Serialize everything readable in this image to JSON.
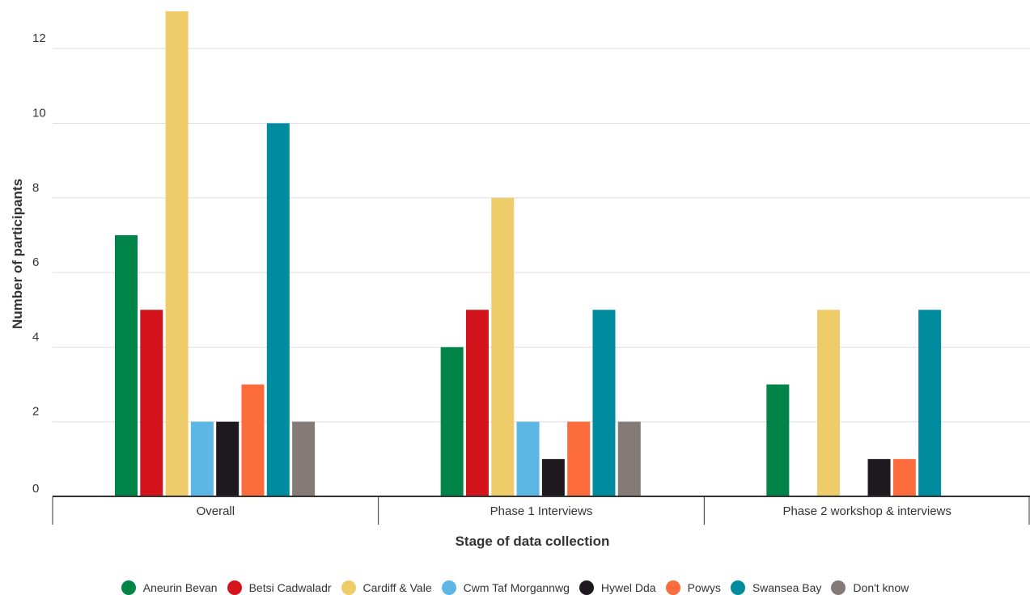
{
  "chart_data": {
    "type": "bar",
    "categories": [
      "Overall",
      "Phase 1 Interviews",
      "Phase 2 workshop & interviews"
    ],
    "series": [
      {
        "name": "Aneurin Bevan",
        "color": "#008447",
        "values": [
          7,
          4,
          3
        ]
      },
      {
        "name": "Betsi Cadwaladr",
        "color": "#d3141d",
        "values": [
          5,
          5,
          0
        ]
      },
      {
        "name": "Cardiff & Vale",
        "color": "#eecc6a",
        "values": [
          13,
          8,
          5
        ]
      },
      {
        "name": "Cwm Taf Morgannwg",
        "color": "#5cb7e5",
        "values": [
          2,
          2,
          0
        ]
      },
      {
        "name": "Hywel Dda",
        "color": "#1d191f",
        "values": [
          2,
          1,
          1
        ]
      },
      {
        "name": "Powys",
        "color": "#fb6b3b",
        "values": [
          3,
          2,
          1
        ]
      },
      {
        "name": "Swansea Bay",
        "color": "#008c9f",
        "values": [
          10,
          5,
          5
        ]
      },
      {
        "name": "Don't know",
        "color": "#847b77",
        "values": [
          2,
          2,
          0
        ]
      }
    ],
    "xlabel": "Stage of data collection",
    "ylabel": "Number of participants",
    "ylim": [
      0,
      13
    ],
    "yticks": [
      0,
      2,
      4,
      6,
      8,
      10,
      12
    ],
    "grid": true,
    "legend_position": "bottom"
  }
}
